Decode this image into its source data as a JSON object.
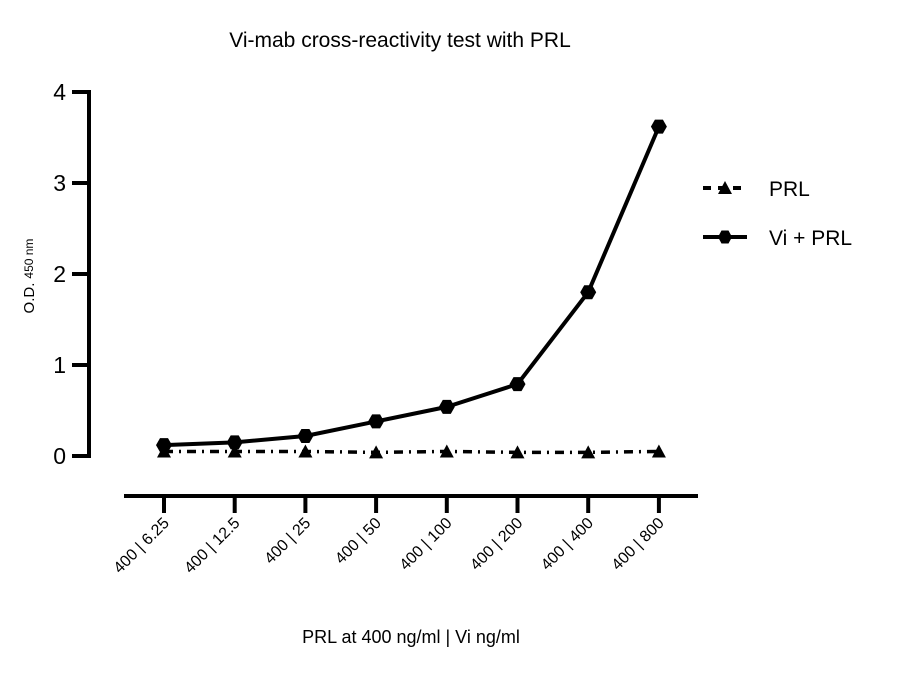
{
  "chart_data": {
    "type": "line",
    "title": "Vi-mab cross-reactivity test with PRL",
    "xlabel": "PRL at 400 ng/ml | Vi ng/ml",
    "ylabel_main": "O.D.",
    "ylabel_sub": "450 nm",
    "categories": [
      "400 | 6.25",
      "400 | 12.5",
      "400 | 25",
      "400 | 50",
      "400 | 100",
      "400 | 200",
      "400 | 400",
      "400 | 800"
    ],
    "ylim": [
      0,
      4
    ],
    "yticks": [
      0,
      1,
      2,
      3,
      4
    ],
    "grid": false,
    "legend_position": "right",
    "series": [
      {
        "name": "PRL",
        "marker": "triangle",
        "line_style": "dash-dot",
        "color": "#000000",
        "values": [
          0.05,
          0.05,
          0.05,
          0.04,
          0.05,
          0.04,
          0.04,
          0.05
        ]
      },
      {
        "name": "Vi + PRL",
        "marker": "hexagon",
        "line_style": "solid",
        "color": "#000000",
        "values": [
          0.12,
          0.15,
          0.22,
          0.38,
          0.54,
          0.79,
          1.8,
          3.62
        ]
      }
    ]
  }
}
